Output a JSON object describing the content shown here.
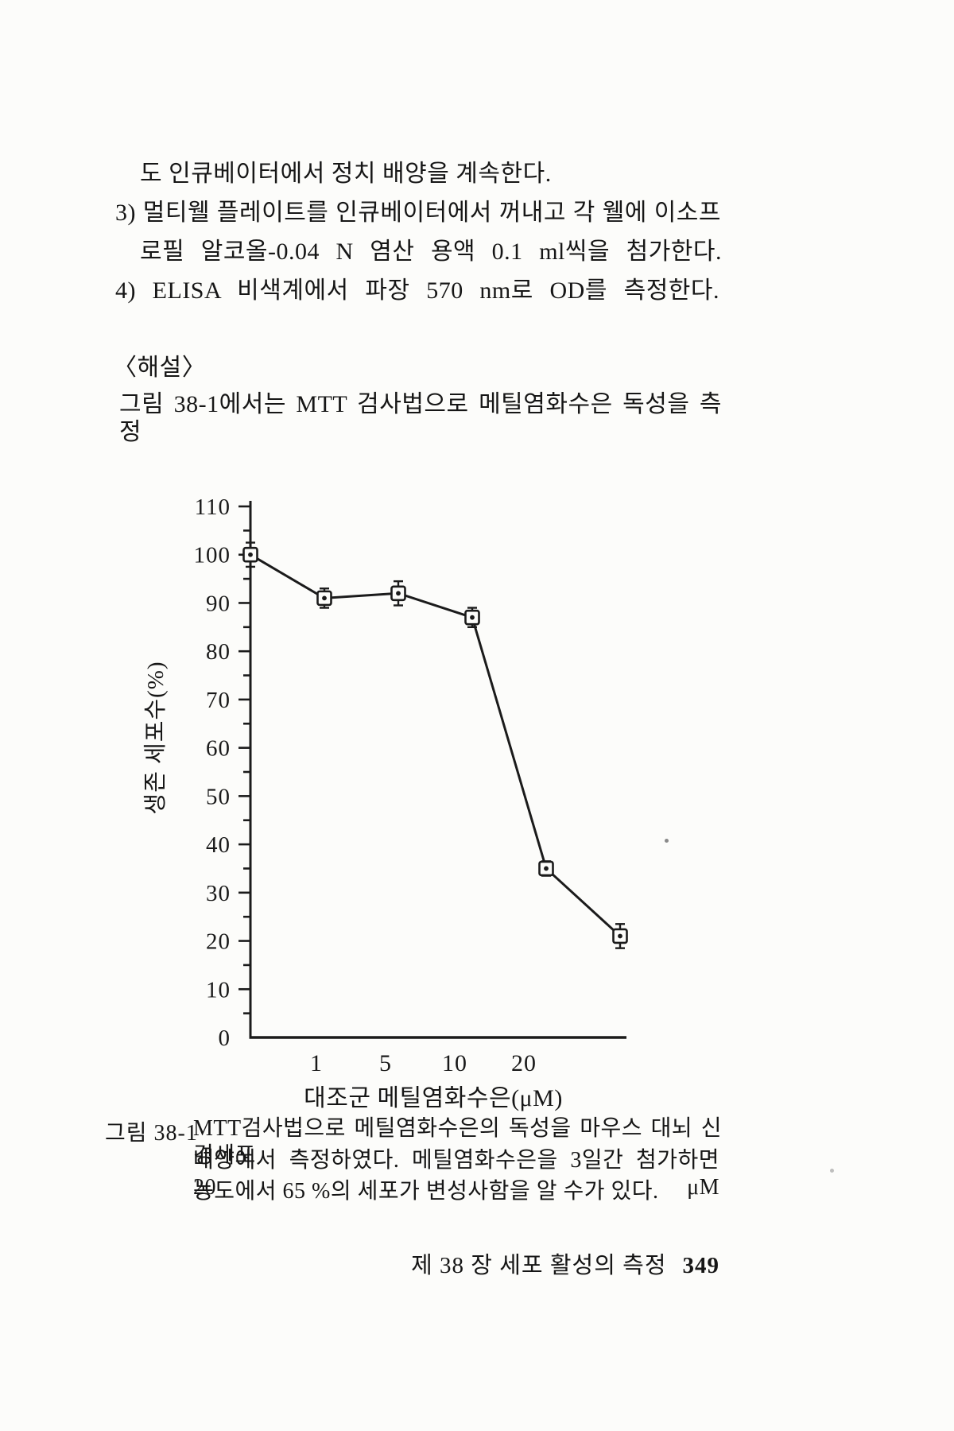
{
  "body": {
    "line1": "도 인큐베이터에서 정치 배양을 계속한다.",
    "line2": "3) 멀티웰 플레이트를 인큐베이터에서 꺼내고 각 웰에 이소프",
    "line3": "로필 알코올-0.04 N 염산 용액 0.1 ml씩을 첨가한다.",
    "line4": "4) ELISA 비색계에서 파장 570 nm로 OD를 측정한다.",
    "section_marker": "〈해설〉",
    "line5": "그림 38-1에서는 MTT 검사법으로 메틸염화수은 독성을 측정"
  },
  "figure_caption": {
    "label": "그림 38-1",
    "line1": "MTT검사법으로 메틸염화수은의 독성을 마우스 대뇌 신경세포",
    "line2": "배양에서 측정하였다. 메틸염화수은을 3일간 첨가하면 20 μM",
    "line3": "농도에서 65 %의 세포가 변성사함을 알 수가 있다."
  },
  "footer": {
    "chapter": "제 38 장 세포 활성의 측정",
    "page_number": "349"
  },
  "chart_data": {
    "type": "line",
    "title": "",
    "xlabel": "대조군 메틸염화수은(μM)",
    "ylabel": "생존 세포수(%)",
    "ylim": [
      0,
      110
    ],
    "ytick_step": 10,
    "yticks": [
      0,
      10,
      20,
      30,
      40,
      50,
      60,
      70,
      80,
      90,
      100,
      110
    ],
    "minor_ytick_step": 5,
    "x_tick_labels": [
      "1",
      "5",
      "10",
      "20"
    ],
    "grid": false,
    "legend": "none",
    "marker": "open-square-with-center-dot",
    "error_bars": true,
    "line_color": "#1b1b1b",
    "points": [
      {
        "category": "대조군",
        "x_slot": 0,
        "y": 100,
        "err": 2.5
      },
      {
        "category": "1",
        "x_slot": 1,
        "y": 91,
        "err": 2
      },
      {
        "category": "5",
        "x_slot": 2,
        "y": 92,
        "err": 2.5
      },
      {
        "category": "10",
        "x_slot": 3,
        "y": 87,
        "err": 2
      },
      {
        "category": "20",
        "x_slot": 4,
        "y": 35,
        "err": 1.5
      },
      {
        "category": "",
        "x_slot": 5,
        "y": 21,
        "err": 2.5
      }
    ]
  }
}
